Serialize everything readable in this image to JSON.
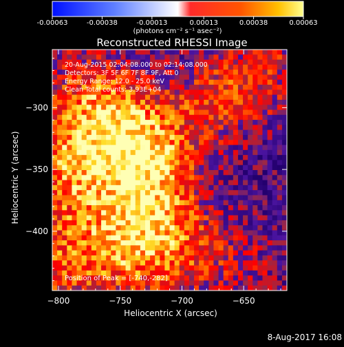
{
  "chart_data": {
    "type": "heatmap",
    "title": "Reconstructed RHESSI Image",
    "xlabel": "Heliocentric X (arcsec)",
    "ylabel": "Heliocentric Y (arcsec)",
    "xlim": [
      -805,
      -615
    ],
    "ylim": [
      -448,
      -253
    ],
    "xticks": [
      -800,
      -750,
      -700,
      -650
    ],
    "yticks": [
      -300,
      -350,
      -400
    ],
    "colorbar": {
      "ticks": [
        -0.00063,
        -0.00038,
        -0.00013,
        0.00013,
        0.00038,
        0.00063
      ],
      "tick_labels": [
        "-0.00063",
        "-0.00038",
        "-0.00013",
        "0.00013",
        "0.00038",
        "0.00063"
      ],
      "range": [
        -0.00063,
        0.00063
      ],
      "label": "(photons cm⁻² s⁻¹ asec⁻²)",
      "colors": [
        "#0010ff",
        "#ffffff",
        "#ff0000",
        "#ffff80"
      ]
    },
    "annotations": [
      "20-Aug-2015 02:04:08.000 to 02:14:08.000",
      "Detectors: 3F 5F 6F 7F 8F 9F, Att 0",
      "Energy Range: 12.0 - 25.0 keV",
      "Clean    Total counts: 3.93E+04"
    ],
    "peak_text": "Position of Peak = [-740,-282]",
    "peak": [
      -740,
      -282
    ],
    "hot_regions": [
      {
        "x": -730,
        "y": -335,
        "intensity": 1.0
      },
      {
        "x": -765,
        "y": -300,
        "intensity": 0.8
      },
      {
        "x": -785,
        "y": -350,
        "intensity": 0.75
      },
      {
        "x": -720,
        "y": -380,
        "intensity": 0.7
      },
      {
        "x": -745,
        "y": -415,
        "intensity": 0.65
      },
      {
        "x": -675,
        "y": -295,
        "intensity": 0.6
      },
      {
        "x": -795,
        "y": -420,
        "intensity": 0.55
      },
      {
        "x": -700,
        "y": -420,
        "intensity": 0.5
      },
      {
        "x": -630,
        "y": -270,
        "intensity": 0.55
      },
      {
        "x": -650,
        "y": -430,
        "intensity": 0.35
      }
    ]
  },
  "footer": {
    "timestamp": "8-Aug-2017 16:08"
  }
}
